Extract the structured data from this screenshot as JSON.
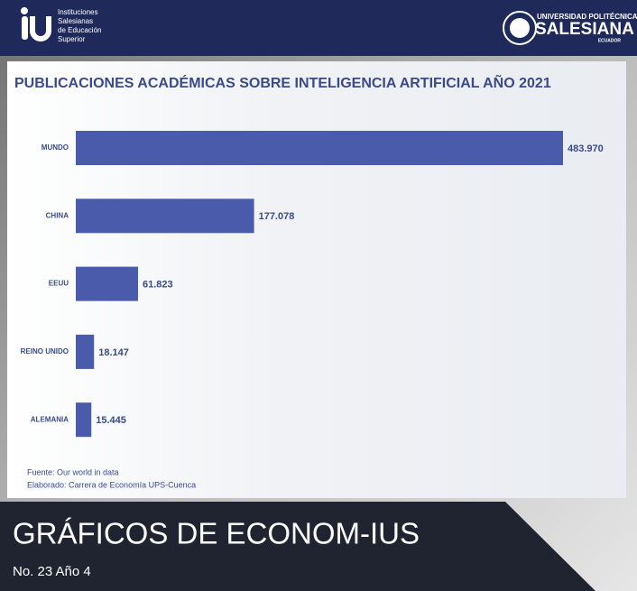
{
  "header": {
    "logo_left": [
      "Instituciones",
      "Salesianas",
      "de Educación",
      "Superior"
    ],
    "logo_right": [
      "UNIVERSIDAD POLITÉCNICA",
      "SALESIANA",
      "ECUADOR"
    ]
  },
  "chart_data": {
    "type": "bar",
    "orientation": "horizontal",
    "title": "PUBLICACIONES ACADÉMICAS SOBRE INTELIGENCIA ARTIFICIAL AÑO 2021",
    "categories": [
      "MUNDO",
      "CHINA",
      "EEUU",
      "REINO UNIDO",
      "ALEMANIA"
    ],
    "values": [
      483970,
      177078,
      61823,
      18147,
      15445
    ],
    "value_labels": [
      "483.970",
      "177.078",
      "61.823",
      "18.147",
      "15.445"
    ],
    "color": "#4a5bab",
    "notes": [
      "Fuente: Our world in data",
      "Elaborado: Carrera de Economía UPS-Cuenca"
    ]
  },
  "footer": {
    "title": "GRÁFICOS DE ECONOM-IUS",
    "issue": "No. 23 Año 4"
  }
}
